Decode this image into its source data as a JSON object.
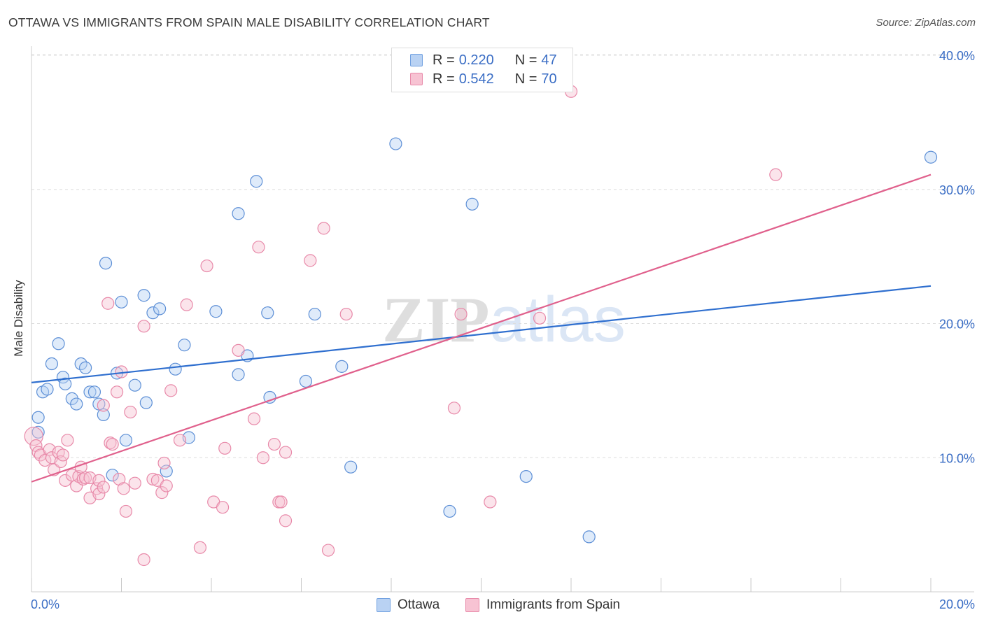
{
  "title": "OTTAWA VS IMMIGRANTS FROM SPAIN MALE DISABILITY CORRELATION CHART",
  "source": "Source: ZipAtlas.com",
  "watermark": "ZIPatlas",
  "legend": {
    "r_label": "R =",
    "n_label": "N =",
    "rows": [
      {
        "r": "0.220",
        "n": "47",
        "color": "#6fa0e0",
        "fill": "#b9d2f3"
      },
      {
        "r": "0.542",
        "n": "70",
        "color": "#e889a9",
        "fill": "#f7c3d3"
      }
    ]
  },
  "bottom_legend": [
    "Ottawa",
    "Immigrants from Spain"
  ],
  "chart_data": {
    "type": "scatter",
    "ylabel": "Male Disability",
    "xlim": [
      0,
      20
    ],
    "ylim": [
      0,
      40
    ],
    "x_tick_labels": [
      "0.0%",
      "20.0%"
    ],
    "y_ticks": [
      10,
      20,
      30,
      40
    ],
    "y_tick_labels": [
      "10.0%",
      "20.0%",
      "30.0%",
      "40.0%"
    ],
    "grid": true,
    "legend_position": "top-center",
    "colors": {
      "ottawa": "#2f6fcf",
      "spain": "#e0608c"
    },
    "series": [
      {
        "name": "Ottawa",
        "r": 0.22,
        "n": 47,
        "trend": [
          [
            0,
            15.6
          ],
          [
            20,
            22.8
          ]
        ],
        "points": [
          [
            0.15,
            11.9
          ],
          [
            0.15,
            13.0
          ],
          [
            0.25,
            14.9
          ],
          [
            0.35,
            15.1
          ],
          [
            0.45,
            17.0
          ],
          [
            0.6,
            18.5
          ],
          [
            0.7,
            16.0
          ],
          [
            0.75,
            15.5
          ],
          [
            0.9,
            14.4
          ],
          [
            1.0,
            14.0
          ],
          [
            1.1,
            17.0
          ],
          [
            1.2,
            16.7
          ],
          [
            1.3,
            14.9
          ],
          [
            1.4,
            14.9
          ],
          [
            1.5,
            14.0
          ],
          [
            1.6,
            13.2
          ],
          [
            1.65,
            24.5
          ],
          [
            1.8,
            8.7
          ],
          [
            1.9,
            16.3
          ],
          [
            2.0,
            21.6
          ],
          [
            2.1,
            11.3
          ],
          [
            2.3,
            15.4
          ],
          [
            2.5,
            22.1
          ],
          [
            2.55,
            14.1
          ],
          [
            2.7,
            20.8
          ],
          [
            2.85,
            21.1
          ],
          [
            3.2,
            16.6
          ],
          [
            3.4,
            18.4
          ],
          [
            3.5,
            11.5
          ],
          [
            4.1,
            20.9
          ],
          [
            4.6,
            16.2
          ],
          [
            4.6,
            28.2
          ],
          [
            4.8,
            17.6
          ],
          [
            5.0,
            30.6
          ],
          [
            5.25,
            20.8
          ],
          [
            5.3,
            14.5
          ],
          [
            6.1,
            15.7
          ],
          [
            6.3,
            20.7
          ],
          [
            6.9,
            16.8
          ],
          [
            7.1,
            9.3
          ],
          [
            8.1,
            33.4
          ],
          [
            9.3,
            6.0
          ],
          [
            9.8,
            28.9
          ],
          [
            11.0,
            8.6
          ],
          [
            12.4,
            4.1
          ],
          [
            20.0,
            32.4
          ],
          [
            3.0,
            9.0
          ]
        ]
      },
      {
        "name": "Immigrants from Spain",
        "r": 0.542,
        "n": 70,
        "trend": [
          [
            0,
            8.2
          ],
          [
            20,
            31.1
          ]
        ],
        "points": [
          [
            0.05,
            11.6
          ],
          [
            0.1,
            10.9
          ],
          [
            0.15,
            10.4
          ],
          [
            0.2,
            10.2
          ],
          [
            0.3,
            9.8
          ],
          [
            0.4,
            10.6
          ],
          [
            0.45,
            10.0
          ],
          [
            0.5,
            9.1
          ],
          [
            0.6,
            10.4
          ],
          [
            0.65,
            9.7
          ],
          [
            0.7,
            10.2
          ],
          [
            0.75,
            8.3
          ],
          [
            0.8,
            11.3
          ],
          [
            0.9,
            8.7
          ],
          [
            1.0,
            7.9
          ],
          [
            1.05,
            8.6
          ],
          [
            1.1,
            9.3
          ],
          [
            1.15,
            8.4
          ],
          [
            1.2,
            8.5
          ],
          [
            1.3,
            8.5
          ],
          [
            1.3,
            7.0
          ],
          [
            1.45,
            7.7
          ],
          [
            1.5,
            8.3
          ],
          [
            1.5,
            7.3
          ],
          [
            1.6,
            7.8
          ],
          [
            1.6,
            13.9
          ],
          [
            1.7,
            21.5
          ],
          [
            1.75,
            11.1
          ],
          [
            1.8,
            11.0
          ],
          [
            1.9,
            14.9
          ],
          [
            1.95,
            8.4
          ],
          [
            2.0,
            16.4
          ],
          [
            2.05,
            7.7
          ],
          [
            2.1,
            6.0
          ],
          [
            2.2,
            13.4
          ],
          [
            2.3,
            8.1
          ],
          [
            2.5,
            19.8
          ],
          [
            2.5,
            2.4
          ],
          [
            2.7,
            8.4
          ],
          [
            2.8,
            8.3
          ],
          [
            2.9,
            7.4
          ],
          [
            2.95,
            9.6
          ],
          [
            3.0,
            7.9
          ],
          [
            3.1,
            15.0
          ],
          [
            3.3,
            11.3
          ],
          [
            3.45,
            21.4
          ],
          [
            3.75,
            3.3
          ],
          [
            3.9,
            24.3
          ],
          [
            4.05,
            6.7
          ],
          [
            4.25,
            6.3
          ],
          [
            4.3,
            10.7
          ],
          [
            4.6,
            18.0
          ],
          [
            4.95,
            12.9
          ],
          [
            5.05,
            25.7
          ],
          [
            5.15,
            10.0
          ],
          [
            5.5,
            6.7
          ],
          [
            5.55,
            6.7
          ],
          [
            5.65,
            10.4
          ],
          [
            5.65,
            5.3
          ],
          [
            6.2,
            24.7
          ],
          [
            6.5,
            27.1
          ],
          [
            6.6,
            3.1
          ],
          [
            7.0,
            20.7
          ],
          [
            9.4,
            13.7
          ],
          [
            9.55,
            20.7
          ],
          [
            10.2,
            6.7
          ],
          [
            11.3,
            20.4
          ],
          [
            12.0,
            37.3
          ],
          [
            16.55,
            31.1
          ],
          [
            5.4,
            11.0
          ]
        ]
      }
    ]
  }
}
